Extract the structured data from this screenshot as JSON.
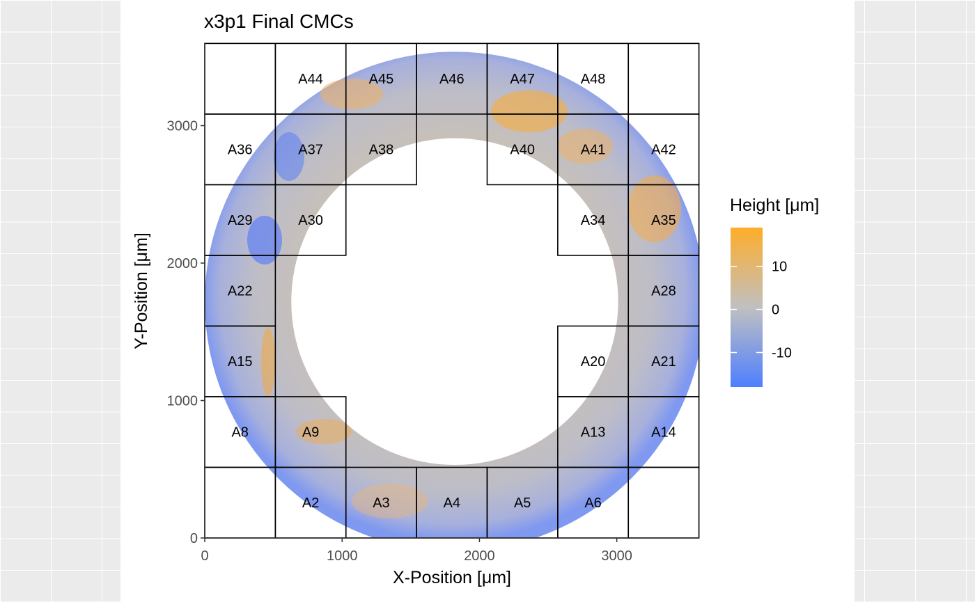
{
  "chart_data": {
    "type": "heatmap",
    "title": "x3p1 Final CMCs",
    "xlabel": "X-Position [μm]",
    "ylabel": "Y-Position [μm]",
    "xlim": [
      0,
      3600
    ],
    "ylim": [
      0,
      3600
    ],
    "x_ticks": [
      0,
      1000,
      2000,
      3000
    ],
    "y_ticks": [
      0,
      1000,
      2000,
      3000
    ],
    "x_tick_labels": [
      "0",
      "1000",
      "2000",
      "3000"
    ],
    "y_tick_labels": [
      "0",
      "1000",
      "2000",
      "3000"
    ],
    "grid": false,
    "legend": {
      "title": "Height [μm]",
      "position": "right",
      "ticks": [
        10,
        0,
        -10
      ],
      "tick_labels": [
        "10",
        "0",
        "-10"
      ],
      "range": [
        -18,
        19
      ],
      "colors": [
        "#4f7fff",
        "#c0c0c0",
        "#ffad29"
      ]
    },
    "ring": {
      "center": [
        1820,
        1720
      ],
      "inner_radius": 1190,
      "outer_radius": 1820
    },
    "cell_size": 514,
    "cells": [
      {
        "label": "A2",
        "col": 1,
        "row": 0
      },
      {
        "label": "A3",
        "col": 2,
        "row": 0
      },
      {
        "label": "A4",
        "col": 3,
        "row": 0
      },
      {
        "label": "A5",
        "col": 4,
        "row": 0
      },
      {
        "label": "A6",
        "col": 5,
        "row": 0
      },
      {
        "label": "A8",
        "col": 0,
        "row": 1
      },
      {
        "label": "A9",
        "col": 1,
        "row": 1
      },
      {
        "label": "A13",
        "col": 5,
        "row": 1
      },
      {
        "label": "A14",
        "col": 6,
        "row": 1
      },
      {
        "label": "A15",
        "col": 0,
        "row": 2
      },
      {
        "label": "A20",
        "col": 5,
        "row": 2
      },
      {
        "label": "A21",
        "col": 6,
        "row": 2
      },
      {
        "label": "A22",
        "col": 0,
        "row": 3
      },
      {
        "label": "A28",
        "col": 6,
        "row": 3
      },
      {
        "label": "A29",
        "col": 0,
        "row": 4
      },
      {
        "label": "A30",
        "col": 1,
        "row": 4
      },
      {
        "label": "A34",
        "col": 5,
        "row": 4
      },
      {
        "label": "A35",
        "col": 6,
        "row": 4
      },
      {
        "label": "A36",
        "col": 0,
        "row": 5
      },
      {
        "label": "A37",
        "col": 1,
        "row": 5
      },
      {
        "label": "A38",
        "col": 2,
        "row": 5
      },
      {
        "label": "A40",
        "col": 4,
        "row": 5
      },
      {
        "label": "A41",
        "col": 5,
        "row": 5
      },
      {
        "label": "A42",
        "col": 6,
        "row": 5
      },
      {
        "label": "A44",
        "col": 1,
        "row": 6
      },
      {
        "label": "A45",
        "col": 2,
        "row": 6
      },
      {
        "label": "A46",
        "col": 3,
        "row": 6
      },
      {
        "label": "A47",
        "col": 4,
        "row": 6
      },
      {
        "label": "A48",
        "col": 5,
        "row": 6
      }
    ],
    "empty_cells": [
      {
        "col": 0,
        "row": 0
      },
      {
        "col": 6,
        "row": 0
      },
      {
        "col": 0,
        "row": 6
      },
      {
        "col": 6,
        "row": 6
      }
    ]
  }
}
